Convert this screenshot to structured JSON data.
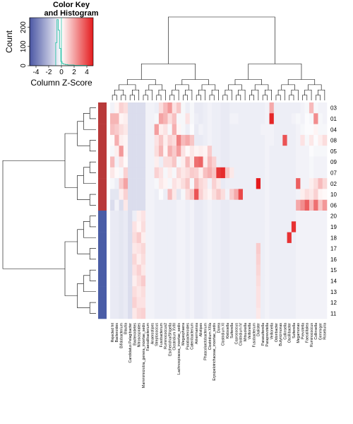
{
  "chart_data": {
    "type": "heatmap",
    "title": "",
    "rows": [
      "03",
      "01",
      "04",
      "08",
      "05",
      "09",
      "07",
      "02",
      "10",
      "06",
      "20",
      "19",
      "18",
      "17",
      "16",
      "15",
      "14",
      "13",
      "12",
      "11"
    ],
    "row_groups": [
      "red",
      "red",
      "red",
      "red",
      "red",
      "red",
      "red",
      "red",
      "red",
      "red",
      "blue",
      "blue",
      "blue",
      "blue",
      "blue",
      "blue",
      "blue",
      "blue",
      "blue",
      "blue"
    ],
    "columns": [
      "Rejected hit",
      "Bacteroides",
      "Bifidobacterium",
      "Blautia",
      "Candidatus Pelagibacter",
      "Bacteroidetes",
      "Nitrosospirales",
      "Mammimicrobia_genera_incertae_sedis",
      "Faecalibacterium",
      "Anaerostipes",
      "Streptococcus",
      "Fusobacterium",
      "Ruminococcus2",
      "Escherichia/Shigella",
      "Clostridium XVIII",
      "Lachnospiracea_incertae_sedis",
      "Megasphaera",
      "Parabacteroides",
      "Catenibacterium",
      "Akkermansia",
      "Alistipes",
      "Phascolarctobacterium",
      "Clostridium XIVa",
      "Erysipelotrichaceae_incertae_sedis",
      "Dorea",
      "Clostridium XI",
      "Klebsiella",
      "Sutterella",
      "Coprococcus",
      "Clostridium IV",
      "Mitsuokella",
      "Veillonella",
      "Fusobacterium",
      "Dialister",
      "Parasutterella",
      "Paraprevotella",
      "Veillonella",
      "Odoribacter",
      "Butyricimonas",
      "Collinsella",
      "Oscillibacter",
      "Sutterella",
      "Megamonas",
      "Prevotella",
      "Faecalitalea",
      "Ruminococcus",
      "Collinsella",
      "Gemmiger",
      "Roseburia"
    ],
    "values": [
      [
        -0.3,
        0.2,
        0.8,
        0.6,
        -0.8,
        -0.8,
        -0.8,
        -0.8,
        -0.3,
        -0.3,
        -0.4,
        0.6,
        1.2,
        1.8,
        0.5,
        1.0,
        -0.2,
        -0.4,
        -0.2,
        -0.5,
        -0.5,
        -0.4,
        -0.3,
        -0.4,
        -0.4,
        -0.5,
        -0.5,
        -0.4,
        -0.4,
        -0.4,
        -0.4,
        -0.4,
        -0.4,
        -0.4,
        -0.4,
        -0.3,
        1.5,
        -0.4,
        -0.4,
        -0.4,
        -0.4,
        -0.4,
        -0.4,
        -0.3,
        -0.2,
        1.2,
        -0.2,
        -0.3,
        -0.3
      ],
      [
        1.3,
        1.3,
        0.2,
        0.3,
        -0.8,
        -0.8,
        -0.8,
        -0.8,
        -0.3,
        -0.3,
        -0.2,
        1.6,
        1.3,
        0.6,
        1.1,
        -0.2,
        -0.2,
        0.5,
        -0.2,
        -0.4,
        -0.5,
        -0.4,
        -0.3,
        -0.4,
        -0.4,
        -0.5,
        -0.5,
        -0.3,
        -0.3,
        -0.4,
        -0.4,
        -0.4,
        -0.4,
        -0.4,
        -0.4,
        -0.3,
        3.8,
        -0.4,
        -0.4,
        -0.4,
        -0.4,
        -0.3,
        -0.2,
        -0.3,
        -0.1,
        -0.2,
        2.0,
        -0.2,
        -0.3
      ],
      [
        1.1,
        0.9,
        0.6,
        0.4,
        -0.8,
        -0.8,
        -0.8,
        -0.8,
        -0.3,
        -0.3,
        1.7,
        0.3,
        0.5,
        -0.2,
        1.4,
        0.2,
        -0.2,
        -0.4,
        -0.1,
        -0.5,
        -0.3,
        -0.4,
        -0.3,
        -0.4,
        -0.4,
        -0.5,
        -0.5,
        -0.4,
        -0.4,
        -0.4,
        -0.4,
        -0.4,
        -0.4,
        -0.4,
        -0.3,
        -0.3,
        -0.3,
        -0.4,
        -0.4,
        -0.4,
        -0.4,
        -0.4,
        -0.3,
        -0.2,
        -0.1,
        -0.1,
        0.2,
        -0.2,
        -0.2
      ],
      [
        0.1,
        1.4,
        0.3,
        0.2,
        -0.8,
        -0.8,
        -0.8,
        -0.8,
        -0.3,
        -0.3,
        0.5,
        1.0,
        0.3,
        0.8,
        0.6,
        2.2,
        1.2,
        1.5,
        1.0,
        -0.5,
        -0.5,
        -0.4,
        -0.3,
        -0.4,
        -0.4,
        -0.5,
        -0.5,
        -0.4,
        -0.4,
        -0.4,
        -0.4,
        -0.4,
        -0.4,
        -0.4,
        -0.4,
        -0.3,
        -0.3,
        -0.4,
        -0.4,
        3.0,
        -0.4,
        -0.4,
        -0.3,
        0.5,
        -0.2,
        0.4,
        -0.1,
        0.3,
        0.6
      ],
      [
        -0.2,
        0.3,
        1.8,
        0.2,
        -0.8,
        -0.8,
        -0.8,
        -0.8,
        -0.3,
        -0.3,
        0.6,
        1.3,
        0.2,
        1.4,
        0.9,
        1.7,
        0.5,
        0.1,
        0.4,
        0.2,
        0.3,
        0.2,
        0.9,
        -0.4,
        -0.4,
        -0.5,
        -0.5,
        -0.4,
        -0.4,
        -0.4,
        -0.4,
        -0.4,
        -0.4,
        -0.4,
        -0.4,
        -0.3,
        -0.4,
        -0.4,
        -0.4,
        -0.4,
        -0.4,
        -0.4,
        -0.3,
        -0.3,
        -0.3,
        -0.1,
        -0.2,
        -0.2,
        -0.2
      ],
      [
        1.2,
        -0.3,
        0.5,
        0.1,
        -0.8,
        -0.8,
        -0.8,
        -0.8,
        -0.3,
        -0.3,
        0.3,
        -0.4,
        0.6,
        0.6,
        1.0,
        -0.2,
        0.3,
        1.2,
        0.4,
        2.5,
        2.7,
        0.3,
        1.2,
        0.8,
        -0.4,
        -0.5,
        -0.5,
        -0.4,
        -0.4,
        -0.4,
        -0.4,
        -0.4,
        -0.4,
        -0.4,
        -0.4,
        -0.3,
        -0.4,
        -0.4,
        -0.4,
        -0.4,
        -0.4,
        -0.4,
        -0.3,
        -0.3,
        -0.3,
        -0.2,
        -0.3,
        -0.3,
        -0.3
      ],
      [
        0.4,
        0.1,
        -0.2,
        0.8,
        -0.8,
        -0.8,
        -0.8,
        -0.8,
        -0.3,
        -0.3,
        0.8,
        0.5,
        -0.2,
        0.3,
        -0.2,
        0.7,
        0.4,
        0.6,
        0.9,
        0.8,
        0.3,
        1.1,
        1.4,
        1.0,
        3.5,
        3.7,
        1.0,
        0.4,
        -0.4,
        -0.4,
        -0.4,
        -0.4,
        -0.4,
        -0.4,
        -0.4,
        -0.3,
        -0.4,
        -0.4,
        -0.4,
        -0.4,
        -0.4,
        -0.4,
        -0.3,
        -0.3,
        -0.3,
        -0.2,
        -0.3,
        -0.3,
        -0.3
      ],
      [
        -0.2,
        -0.4,
        0.9,
        1.6,
        -0.8,
        -0.8,
        -0.8,
        -0.8,
        -0.3,
        -0.3,
        -0.2,
        0.4,
        0.2,
        -0.2,
        0.5,
        0.3,
        0.6,
        1.0,
        -0.2,
        1.3,
        0.7,
        0.5,
        -0.3,
        0.8,
        0.4,
        -0.5,
        -0.4,
        -0.4,
        -0.4,
        -0.4,
        -0.4,
        -0.4,
        -0.4,
        4.0,
        -0.4,
        -0.3,
        -0.4,
        -0.4,
        -0.4,
        -0.4,
        -0.4,
        -0.4,
        2.8,
        -0.3,
        -0.3,
        0.3,
        0.6,
        1.2,
        0.7
      ],
      [
        -0.6,
        -0.6,
        0.3,
        0.8,
        -0.8,
        -0.8,
        -0.8,
        -0.8,
        -0.3,
        -0.3,
        -0.4,
        -0.1,
        -0.4,
        1.2,
        0.4,
        -0.6,
        -0.2,
        0.6,
        1.0,
        3.0,
        0.8,
        0.4,
        0.2,
        0.6,
        1.0,
        0.6,
        -0.3,
        0.9,
        1.5,
        3.2,
        -0.4,
        -0.4,
        -0.4,
        -0.4,
        -0.4,
        -0.3,
        -0.4,
        -0.4,
        -0.4,
        -0.4,
        -0.4,
        -0.4,
        -0.3,
        0.3,
        0.6,
        0.4,
        0.8,
        0.2,
        0.1
      ],
      [
        -0.8,
        -0.3,
        -0.8,
        0.4,
        -0.8,
        -0.8,
        -0.8,
        -0.8,
        -0.3,
        -0.3,
        -0.4,
        -0.4,
        -0.4,
        -0.4,
        -0.4,
        -0.3,
        -0.3,
        -0.4,
        -0.3,
        -0.5,
        -0.5,
        -0.4,
        -0.3,
        -0.4,
        -0.4,
        -0.5,
        -0.5,
        -0.4,
        -0.4,
        -0.4,
        -0.4,
        -0.4,
        -0.4,
        -0.4,
        -0.4,
        -0.3,
        -0.4,
        -0.4,
        -0.4,
        -0.4,
        -0.4,
        -0.4,
        1.5,
        2.0,
        2.8,
        1.2,
        2.5,
        1.0,
        1.8
      ],
      [
        -0.5,
        -0.5,
        -0.6,
        -0.5,
        -0.8,
        -0.4,
        0.3,
        0.5,
        -0.3,
        -0.3,
        -0.4,
        -0.4,
        -0.4,
        -0.4,
        -0.4,
        -0.3,
        -0.3,
        -0.4,
        -0.3,
        -0.5,
        -0.5,
        -0.4,
        -0.3,
        -0.4,
        -0.4,
        -0.5,
        -0.5,
        -0.4,
        -0.4,
        -0.4,
        -0.4,
        -0.4,
        -0.4,
        -0.4,
        -0.4,
        -0.3,
        -0.4,
        -0.4,
        -0.4,
        -0.4,
        -0.4,
        -0.4,
        -0.3,
        -0.3,
        -0.3,
        -0.3,
        -0.3,
        -0.3,
        -0.3
      ],
      [
        -0.5,
        -0.5,
        -0.6,
        -0.5,
        -0.8,
        0.5,
        0.2,
        0.6,
        -0.3,
        -0.3,
        -0.4,
        -0.4,
        -0.4,
        -0.4,
        -0.4,
        -0.3,
        -0.3,
        -0.4,
        -0.3,
        -0.5,
        -0.5,
        -0.4,
        -0.3,
        -0.4,
        -0.4,
        -0.5,
        -0.5,
        -0.4,
        -0.4,
        -0.4,
        -0.4,
        -0.4,
        -0.4,
        -0.4,
        -0.4,
        -0.3,
        -0.4,
        -0.4,
        -0.4,
        -0.4,
        -0.4,
        3.6,
        -0.3,
        -0.3,
        -0.3,
        -0.3,
        -0.3,
        -0.3,
        -0.3
      ],
      [
        -0.5,
        -0.5,
        -0.6,
        -0.5,
        -0.8,
        0.6,
        0.9,
        0.3,
        -0.3,
        -0.3,
        -0.4,
        -0.4,
        -0.4,
        -0.4,
        -0.4,
        -0.3,
        -0.3,
        -0.4,
        -0.3,
        -0.5,
        -0.5,
        -0.4,
        -0.3,
        -0.4,
        -0.4,
        -0.5,
        -0.5,
        -0.4,
        -0.4,
        -0.4,
        -0.4,
        -0.4,
        -0.4,
        -0.4,
        -0.4,
        -0.3,
        -0.4,
        -0.4,
        -0.4,
        -0.4,
        3.6,
        -0.4,
        -0.3,
        -0.3,
        -0.3,
        -0.3,
        -0.3,
        -0.3,
        -0.3
      ],
      [
        -0.5,
        -0.5,
        -0.6,
        -0.5,
        -0.8,
        0.4,
        0.5,
        0.7,
        -0.3,
        -0.3,
        -0.4,
        -0.4,
        -0.4,
        -0.4,
        -0.4,
        -0.3,
        -0.3,
        -0.4,
        -0.3,
        -0.5,
        -0.5,
        -0.4,
        -0.3,
        -0.4,
        -0.4,
        -0.5,
        -0.5,
        -0.4,
        -0.4,
        -0.4,
        -0.4,
        -0.4,
        -0.4,
        0.9,
        -0.4,
        -0.3,
        -0.4,
        -0.4,
        -0.4,
        -0.4,
        -0.4,
        -0.4,
        -0.3,
        -0.3,
        -0.3,
        -0.3,
        -0.3,
        -0.3,
        -0.3
      ],
      [
        -0.5,
        -0.5,
        -0.6,
        -0.5,
        -0.8,
        0.7,
        0.3,
        0.6,
        -0.3,
        -0.3,
        -0.4,
        -0.4,
        -0.4,
        -0.4,
        -0.4,
        -0.3,
        -0.3,
        -0.4,
        -0.3,
        -0.5,
        -0.5,
        -0.4,
        -0.3,
        -0.4,
        -0.4,
        -0.5,
        -0.5,
        -0.4,
        -0.4,
        -0.4,
        -0.4,
        -0.4,
        -0.4,
        0.8,
        -0.4,
        -0.3,
        -0.4,
        -0.4,
        -0.4,
        -0.4,
        -0.4,
        -0.4,
        -0.3,
        -0.3,
        -0.3,
        -0.3,
        -0.3,
        -0.3,
        -0.3
      ],
      [
        -0.5,
        -0.5,
        -0.6,
        -0.5,
        -0.8,
        0.5,
        0.8,
        0.4,
        -0.3,
        -0.3,
        -0.4,
        -0.4,
        -0.4,
        -0.4,
        -0.4,
        -0.3,
        -0.3,
        -0.4,
        -0.3,
        -0.5,
        -0.5,
        -0.4,
        -0.3,
        -0.4,
        -0.4,
        -0.5,
        -0.5,
        -0.4,
        -0.4,
        -0.4,
        -0.4,
        -0.4,
        -0.4,
        0.7,
        -0.4,
        -0.3,
        -0.4,
        -0.4,
        -0.4,
        -0.4,
        -0.4,
        -0.4,
        -0.3,
        -0.3,
        -0.3,
        -0.3,
        -0.3,
        -0.3,
        -0.3
      ],
      [
        -0.5,
        -0.5,
        -0.6,
        -0.5,
        -0.8,
        0.3,
        0.6,
        0.9,
        -0.3,
        -0.3,
        -0.4,
        -0.4,
        -0.4,
        -0.4,
        -0.4,
        -0.3,
        -0.3,
        -0.4,
        -0.3,
        -0.5,
        -0.5,
        -0.4,
        -0.3,
        -0.4,
        -0.4,
        -0.5,
        -0.5,
        -0.4,
        -0.4,
        -0.4,
        -0.4,
        -0.4,
        -0.4,
        0.6,
        -0.4,
        -0.3,
        -0.4,
        -0.4,
        -0.4,
        -0.4,
        -0.4,
        -0.4,
        -0.3,
        -0.3,
        -0.3,
        -0.3,
        -0.3,
        -0.3,
        -0.3
      ],
      [
        -0.5,
        -0.5,
        -0.6,
        -0.5,
        -0.8,
        0.6,
        0.4,
        0.6,
        -0.3,
        -0.3,
        -0.4,
        -0.4,
        -0.4,
        -0.4,
        -0.4,
        -0.3,
        -0.3,
        -0.4,
        -0.3,
        -0.5,
        -0.5,
        -0.4,
        -0.3,
        -0.4,
        -0.4,
        -0.5,
        -0.5,
        -0.4,
        -0.4,
        -0.4,
        -0.4,
        -0.4,
        -0.4,
        0.5,
        -0.4,
        -0.3,
        -0.4,
        -0.4,
        -0.4,
        -0.4,
        -0.4,
        -0.4,
        -0.3,
        -0.3,
        -0.3,
        -0.3,
        -0.3,
        -0.3,
        -0.3
      ],
      [
        -0.5,
        -0.5,
        -0.6,
        -0.5,
        -0.8,
        0.8,
        0.5,
        0.5,
        -0.3,
        -0.3,
        -0.4,
        -0.4,
        -0.4,
        -0.4,
        -0.4,
        -0.3,
        -0.3,
        -0.4,
        -0.3,
        -0.5,
        -0.5,
        -0.4,
        -0.3,
        -0.4,
        -0.4,
        -0.5,
        -0.5,
        -0.4,
        -0.4,
        -0.4,
        -0.4,
        -0.4,
        -0.4,
        0.5,
        -0.4,
        -0.3,
        -0.4,
        -0.4,
        -0.4,
        -0.4,
        -0.4,
        -0.4,
        -0.3,
        -0.3,
        -0.3,
        -0.3,
        -0.3,
        -0.3,
        -0.3
      ],
      [
        -0.5,
        -0.5,
        -0.6,
        -0.5,
        -0.8,
        0.4,
        0.7,
        0.8,
        -0.3,
        -0.3,
        -0.4,
        -0.4,
        -0.4,
        -0.4,
        -0.4,
        -0.3,
        -0.3,
        -0.4,
        -0.3,
        -0.5,
        -0.5,
        -0.4,
        -0.3,
        -0.4,
        -0.4,
        -0.5,
        -0.5,
        -0.4,
        -0.4,
        -0.4,
        -0.4,
        -0.4,
        -0.4,
        0.4,
        -0.4,
        -0.3,
        -0.4,
        -0.4,
        -0.4,
        -0.4,
        -0.4,
        -0.4,
        -0.3,
        -0.3,
        -0.3,
        -0.3,
        -0.3,
        -0.3,
        -0.3
      ]
    ],
    "color_key": {
      "title_line1": "Color Key",
      "title_line2": "and Histogram",
      "xlabel": "Column Z-Score",
      "ylabel": "Count",
      "x_ticks": [
        "-4",
        "-2",
        "0",
        "2",
        "4"
      ],
      "x_tick_values": [
        -4,
        -2,
        0,
        2,
        4
      ],
      "y_ticks": [
        "0",
        "100",
        "200"
      ],
      "y_tick_values": [
        0,
        100,
        200
      ],
      "xlim": [
        -5,
        5
      ],
      "ylim": [
        0,
        250
      ],
      "histogram": [
        [
          -0.9,
          -0.7,
          120
        ],
        [
          -0.7,
          -0.5,
          240
        ],
        [
          -0.5,
          -0.3,
          185
        ],
        [
          -0.3,
          -0.1,
          90
        ],
        [
          -0.1,
          0.1,
          22
        ],
        [
          0.1,
          0.3,
          12
        ],
        [
          0.3,
          0.6,
          8
        ],
        [
          0.6,
          1.0,
          6
        ],
        [
          1.0,
          2.0,
          4
        ],
        [
          2.0,
          4.0,
          2
        ]
      ],
      "low_color": "#4b57a4",
      "mid_color": "#ffffff",
      "high_color": "#e41a1c",
      "histogram_color": "#2dc3a8"
    },
    "group_colors": {
      "red": "#b83a3a",
      "blue": "#4a5da6"
    },
    "grid": false
  }
}
